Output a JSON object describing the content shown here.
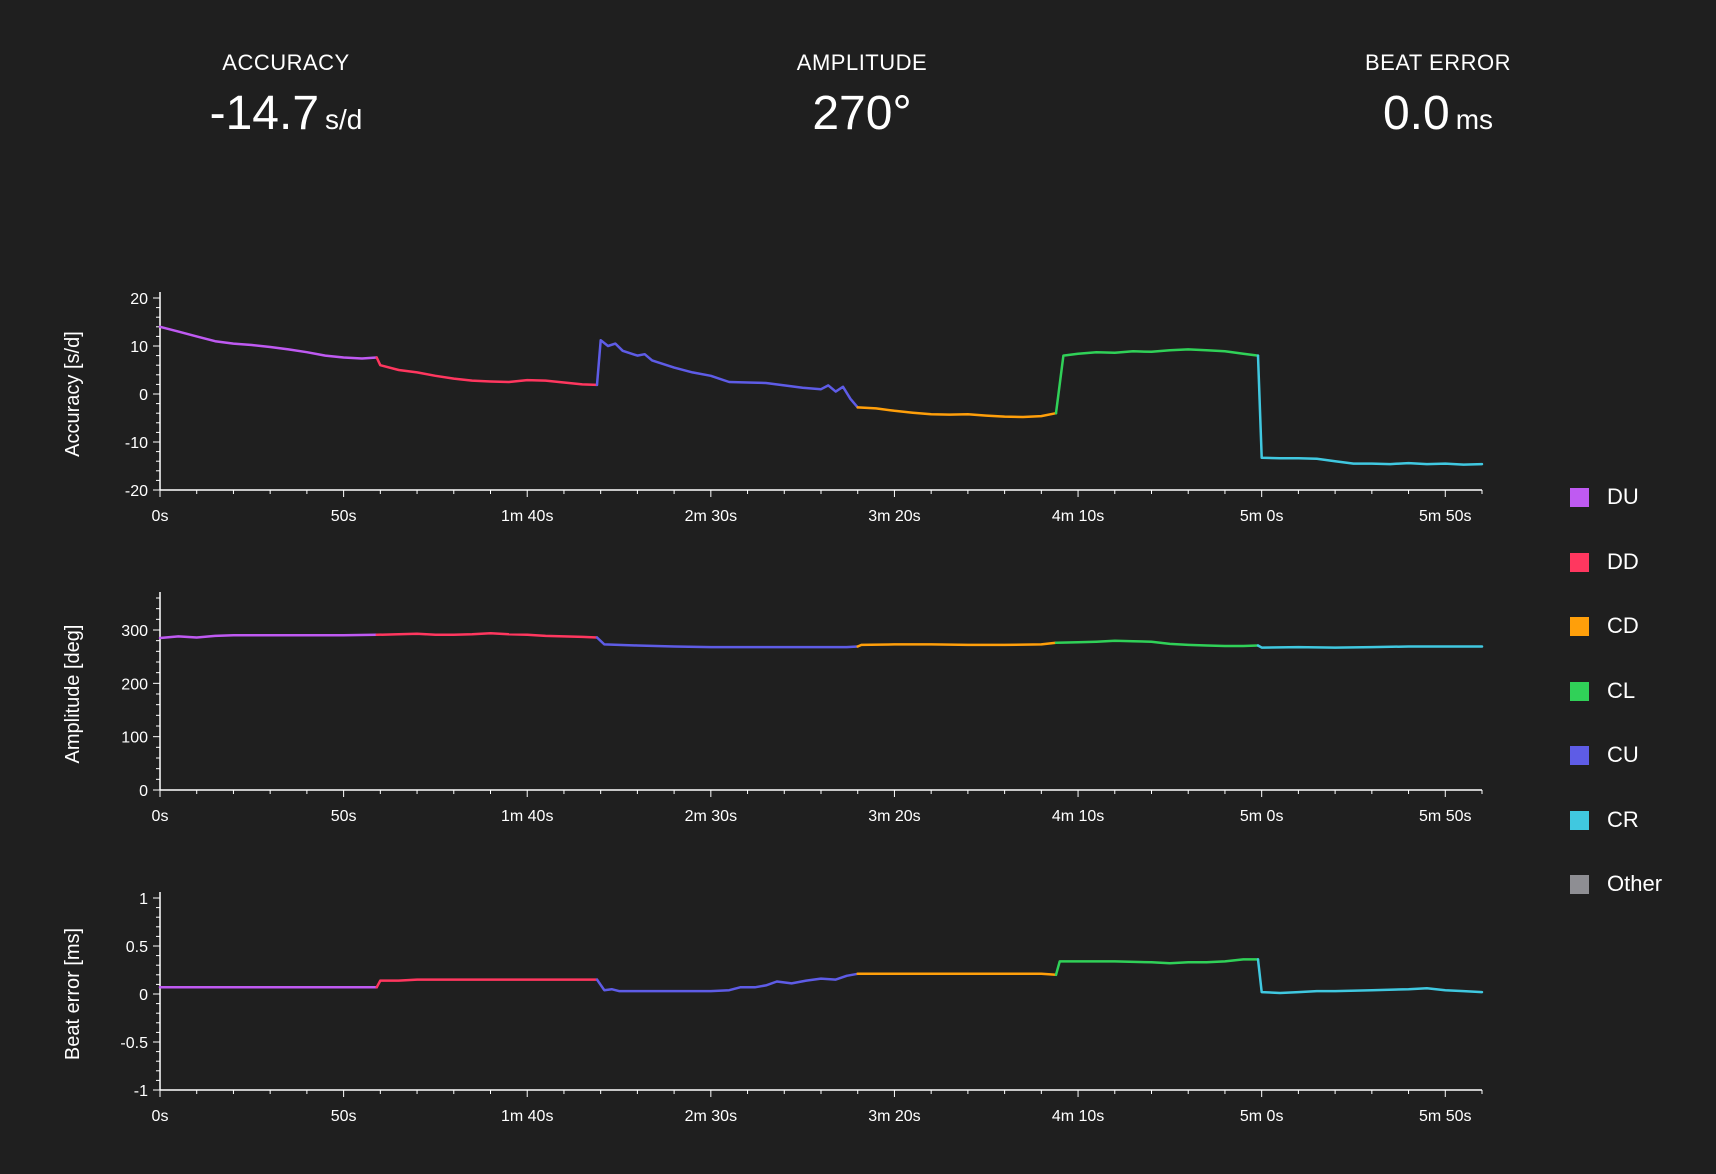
{
  "header": {
    "accuracy": {
      "label": "ACCURACY",
      "value": "-14.7",
      "unit": "s/d"
    },
    "amplitude": {
      "label": "AMPLITUDE",
      "value": "270°"
    },
    "beat_error": {
      "label": "BEAT ERROR",
      "value": "0.0",
      "unit": "ms"
    }
  },
  "colors": {
    "background": "#1f1f1f",
    "axis": "#ffffff",
    "DU": "#bf5af2",
    "DD": "#ff375f",
    "CD": "#ff9f0a",
    "CL": "#30d158",
    "CU": "#5e5ce6",
    "CR": "#40c8e0",
    "Other": "#8e8e93"
  },
  "legend": [
    {
      "key": "DU",
      "label": "DU"
    },
    {
      "key": "DD",
      "label": "DD"
    },
    {
      "key": "CD",
      "label": "CD"
    },
    {
      "key": "CL",
      "label": "CL"
    },
    {
      "key": "CU",
      "label": "CU"
    },
    {
      "key": "CR",
      "label": "CR"
    },
    {
      "key": "Other",
      "label": "Other"
    }
  ],
  "chart_data": [
    {
      "id": "accuracy",
      "type": "line",
      "ylabel": "Accuracy [s/d]",
      "xlabel": "",
      "xlim": [
        0,
        360
      ],
      "ylim": [
        -20,
        20
      ],
      "x_ticks": [
        0,
        50,
        100,
        150,
        200,
        250,
        300,
        350
      ],
      "x_tick_labels": [
        "0s",
        "50s",
        "1m 40s",
        "2m 30s",
        "3m 20s",
        "4m 10s",
        "5m 0s",
        "5m 50s"
      ],
      "y_ticks": [
        -20,
        -10,
        0,
        10,
        20
      ],
      "y_tick_labels": [
        "-20",
        "-10",
        "0",
        "10",
        "20"
      ],
      "series": [
        {
          "key": "DU",
          "points": [
            [
              0,
              14
            ],
            [
              5,
              13
            ],
            [
              10,
              12
            ],
            [
              15,
              11
            ],
            [
              20,
              10.5
            ],
            [
              25,
              10.2
            ],
            [
              30,
              9.8
            ],
            [
              35,
              9.3
            ],
            [
              40,
              8.7
            ],
            [
              45,
              8
            ],
            [
              50,
              7.6
            ],
            [
              55,
              7.4
            ],
            [
              59,
              7.6
            ]
          ]
        },
        {
          "key": "DD",
          "points": [
            [
              59,
              7.6
            ],
            [
              60,
              6
            ],
            [
              65,
              5
            ],
            [
              70,
              4.5
            ],
            [
              75,
              3.8
            ],
            [
              80,
              3.2
            ],
            [
              85,
              2.8
            ],
            [
              90,
              2.6
            ],
            [
              95,
              2.5
            ],
            [
              100,
              2.9
            ],
            [
              105,
              2.8
            ],
            [
              110,
              2.4
            ],
            [
              115,
              2
            ],
            [
              119,
              1.9
            ]
          ]
        },
        {
          "key": "CU",
          "points": [
            [
              119,
              1.9
            ],
            [
              120,
              11.2
            ],
            [
              122,
              10
            ],
            [
              124,
              10.5
            ],
            [
              126,
              9
            ],
            [
              130,
              8
            ],
            [
              132,
              8.3
            ],
            [
              134,
              7
            ],
            [
              136,
              6.5
            ],
            [
              140,
              5.5
            ],
            [
              145,
              4.5
            ],
            [
              150,
              3.8
            ],
            [
              155,
              2.5
            ],
            [
              160,
              2.4
            ],
            [
              165,
              2.3
            ],
            [
              170,
              1.8
            ],
            [
              175,
              1.3
            ],
            [
              180,
              1
            ],
            [
              182,
              1.8
            ],
            [
              184,
              0.5
            ],
            [
              186,
              1.5
            ],
            [
              188,
              -1
            ],
            [
              190,
              -2.8
            ]
          ]
        },
        {
          "key": "CD",
          "points": [
            [
              190,
              -2.8
            ],
            [
              195,
              -3
            ],
            [
              200,
              -3.5
            ],
            [
              205,
              -3.9
            ],
            [
              210,
              -4.2
            ],
            [
              215,
              -4.3
            ],
            [
              220,
              -4.2
            ],
            [
              225,
              -4.5
            ],
            [
              230,
              -4.7
            ],
            [
              235,
              -4.8
            ],
            [
              240,
              -4.6
            ],
            [
              244,
              -4
            ]
          ]
        },
        {
          "key": "CL",
          "points": [
            [
              244,
              -4
            ],
            [
              246,
              8
            ],
            [
              250,
              8.4
            ],
            [
              255,
              8.7
            ],
            [
              260,
              8.6
            ],
            [
              265,
              8.9
            ],
            [
              270,
              8.8
            ],
            [
              275,
              9.1
            ],
            [
              280,
              9.3
            ],
            [
              285,
              9.1
            ],
            [
              290,
              8.9
            ],
            [
              295,
              8.4
            ],
            [
              299,
              8
            ]
          ]
        },
        {
          "key": "CR",
          "points": [
            [
              299,
              8
            ],
            [
              300,
              -13.3
            ],
            [
              305,
              -13.4
            ],
            [
              310,
              -13.4
            ],
            [
              315,
              -13.5
            ],
            [
              320,
              -14
            ],
            [
              325,
              -14.5
            ],
            [
              330,
              -14.5
            ],
            [
              335,
              -14.6
            ],
            [
              340,
              -14.4
            ],
            [
              345,
              -14.6
            ],
            [
              350,
              -14.5
            ],
            [
              355,
              -14.7
            ],
            [
              360,
              -14.6
            ]
          ]
        }
      ]
    },
    {
      "id": "amplitude",
      "type": "line",
      "ylabel": "Amplitude [deg]",
      "xlabel": "",
      "xlim": [
        0,
        360
      ],
      "ylim": [
        0,
        360
      ],
      "x_ticks": [
        0,
        50,
        100,
        150,
        200,
        250,
        300,
        350
      ],
      "x_tick_labels": [
        "0s",
        "50s",
        "1m 40s",
        "2m 30s",
        "3m 20s",
        "4m 10s",
        "5m 0s",
        "5m 50s"
      ],
      "y_ticks": [
        0,
        100,
        200,
        300
      ],
      "y_tick_labels": [
        "0",
        "100",
        "200",
        "300"
      ],
      "series": [
        {
          "key": "DU",
          "points": [
            [
              0,
              285
            ],
            [
              5,
              288
            ],
            [
              10,
              286
            ],
            [
              15,
              289
            ],
            [
              20,
              290
            ],
            [
              30,
              290
            ],
            [
              40,
              290
            ],
            [
              50,
              290
            ],
            [
              59,
              291
            ]
          ]
        },
        {
          "key": "DD",
          "points": [
            [
              59,
              291
            ],
            [
              65,
              292
            ],
            [
              70,
              293
            ],
            [
              75,
              291
            ],
            [
              80,
              291
            ],
            [
              85,
              292
            ],
            [
              90,
              294
            ],
            [
              95,
              292
            ],
            [
              100,
              291
            ],
            [
              105,
              289
            ],
            [
              110,
              288
            ],
            [
              115,
              287
            ],
            [
              119,
              286
            ]
          ]
        },
        {
          "key": "CU",
          "points": [
            [
              119,
              286
            ],
            [
              121,
              273
            ],
            [
              130,
              271
            ],
            [
              140,
              269
            ],
            [
              150,
              268
            ],
            [
              160,
              268
            ],
            [
              170,
              268
            ],
            [
              180,
              268
            ],
            [
              187,
              268
            ],
            [
              190,
              269
            ]
          ]
        },
        {
          "key": "CD",
          "points": [
            [
              190,
              269
            ],
            [
              191,
              272
            ],
            [
              200,
              273
            ],
            [
              210,
              273
            ],
            [
              220,
              272
            ],
            [
              230,
              272
            ],
            [
              240,
              273
            ],
            [
              244,
              276
            ]
          ]
        },
        {
          "key": "CL",
          "points": [
            [
              244,
              276
            ],
            [
              250,
              277
            ],
            [
              255,
              278
            ],
            [
              260,
              280
            ],
            [
              265,
              279
            ],
            [
              270,
              278
            ],
            [
              275,
              274
            ],
            [
              280,
              272
            ],
            [
              285,
              271
            ],
            [
              290,
              270
            ],
            [
              295,
              270
            ],
            [
              299,
              271
            ]
          ]
        },
        {
          "key": "CR",
          "points": [
            [
              299,
              271
            ],
            [
              300,
              267
            ],
            [
              310,
              268
            ],
            [
              320,
              267
            ],
            [
              330,
              268
            ],
            [
              340,
              269
            ],
            [
              350,
              269
            ],
            [
              360,
              269
            ]
          ]
        }
      ]
    },
    {
      "id": "beat_error",
      "type": "line",
      "ylabel": "Beat error [ms]",
      "xlabel": "",
      "xlim": [
        0,
        360
      ],
      "ylim": [
        -1,
        1
      ],
      "x_ticks": [
        0,
        50,
        100,
        150,
        200,
        250,
        300,
        350
      ],
      "x_tick_labels": [
        "0s",
        "50s",
        "1m 40s",
        "2m 30s",
        "3m 20s",
        "4m 10s",
        "5m 0s",
        "5m 50s"
      ],
      "y_ticks": [
        -1,
        -0.5,
        0,
        0.5,
        1
      ],
      "y_tick_labels": [
        "-1",
        "-0.5",
        "0",
        "0.5",
        "1"
      ],
      "series": [
        {
          "key": "DU",
          "points": [
            [
              0,
              0.07
            ],
            [
              10,
              0.07
            ],
            [
              20,
              0.07
            ],
            [
              30,
              0.07
            ],
            [
              40,
              0.07
            ],
            [
              50,
              0.07
            ],
            [
              59,
              0.07
            ]
          ]
        },
        {
          "key": "DD",
          "points": [
            [
              59,
              0.07
            ],
            [
              60,
              0.14
            ],
            [
              65,
              0.14
            ],
            [
              70,
              0.15
            ],
            [
              80,
              0.15
            ],
            [
              90,
              0.15
            ],
            [
              100,
              0.15
            ],
            [
              110,
              0.15
            ],
            [
              119,
              0.15
            ]
          ]
        },
        {
          "key": "CU",
          "points": [
            [
              119,
              0.15
            ],
            [
              121,
              0.04
            ],
            [
              123,
              0.05
            ],
            [
              125,
              0.03
            ],
            [
              135,
              0.03
            ],
            [
              145,
              0.03
            ],
            [
              150,
              0.03
            ],
            [
              155,
              0.04
            ],
            [
              158,
              0.07
            ],
            [
              162,
              0.07
            ],
            [
              165,
              0.09
            ],
            [
              168,
              0.13
            ],
            [
              172,
              0.11
            ],
            [
              176,
              0.14
            ],
            [
              180,
              0.16
            ],
            [
              184,
              0.15
            ],
            [
              187,
              0.19
            ],
            [
              190,
              0.21
            ]
          ]
        },
        {
          "key": "CD",
          "points": [
            [
              190,
              0.21
            ],
            [
              200,
              0.21
            ],
            [
              210,
              0.21
            ],
            [
              220,
              0.21
            ],
            [
              230,
              0.21
            ],
            [
              240,
              0.21
            ],
            [
              244,
              0.2
            ]
          ]
        },
        {
          "key": "CL",
          "points": [
            [
              244,
              0.2
            ],
            [
              245,
              0.34
            ],
            [
              250,
              0.34
            ],
            [
              260,
              0.34
            ],
            [
              270,
              0.33
            ],
            [
              275,
              0.32
            ],
            [
              280,
              0.33
            ],
            [
              285,
              0.33
            ],
            [
              290,
              0.34
            ],
            [
              295,
              0.36
            ],
            [
              299,
              0.36
            ]
          ]
        },
        {
          "key": "CR",
          "points": [
            [
              299,
              0.36
            ],
            [
              300,
              0.02
            ],
            [
              305,
              0.01
            ],
            [
              310,
              0.02
            ],
            [
              315,
              0.03
            ],
            [
              320,
              0.03
            ],
            [
              330,
              0.04
            ],
            [
              340,
              0.05
            ],
            [
              345,
              0.06
            ],
            [
              350,
              0.04
            ],
            [
              355,
              0.03
            ],
            [
              360,
              0.02
            ]
          ]
        }
      ]
    }
  ]
}
